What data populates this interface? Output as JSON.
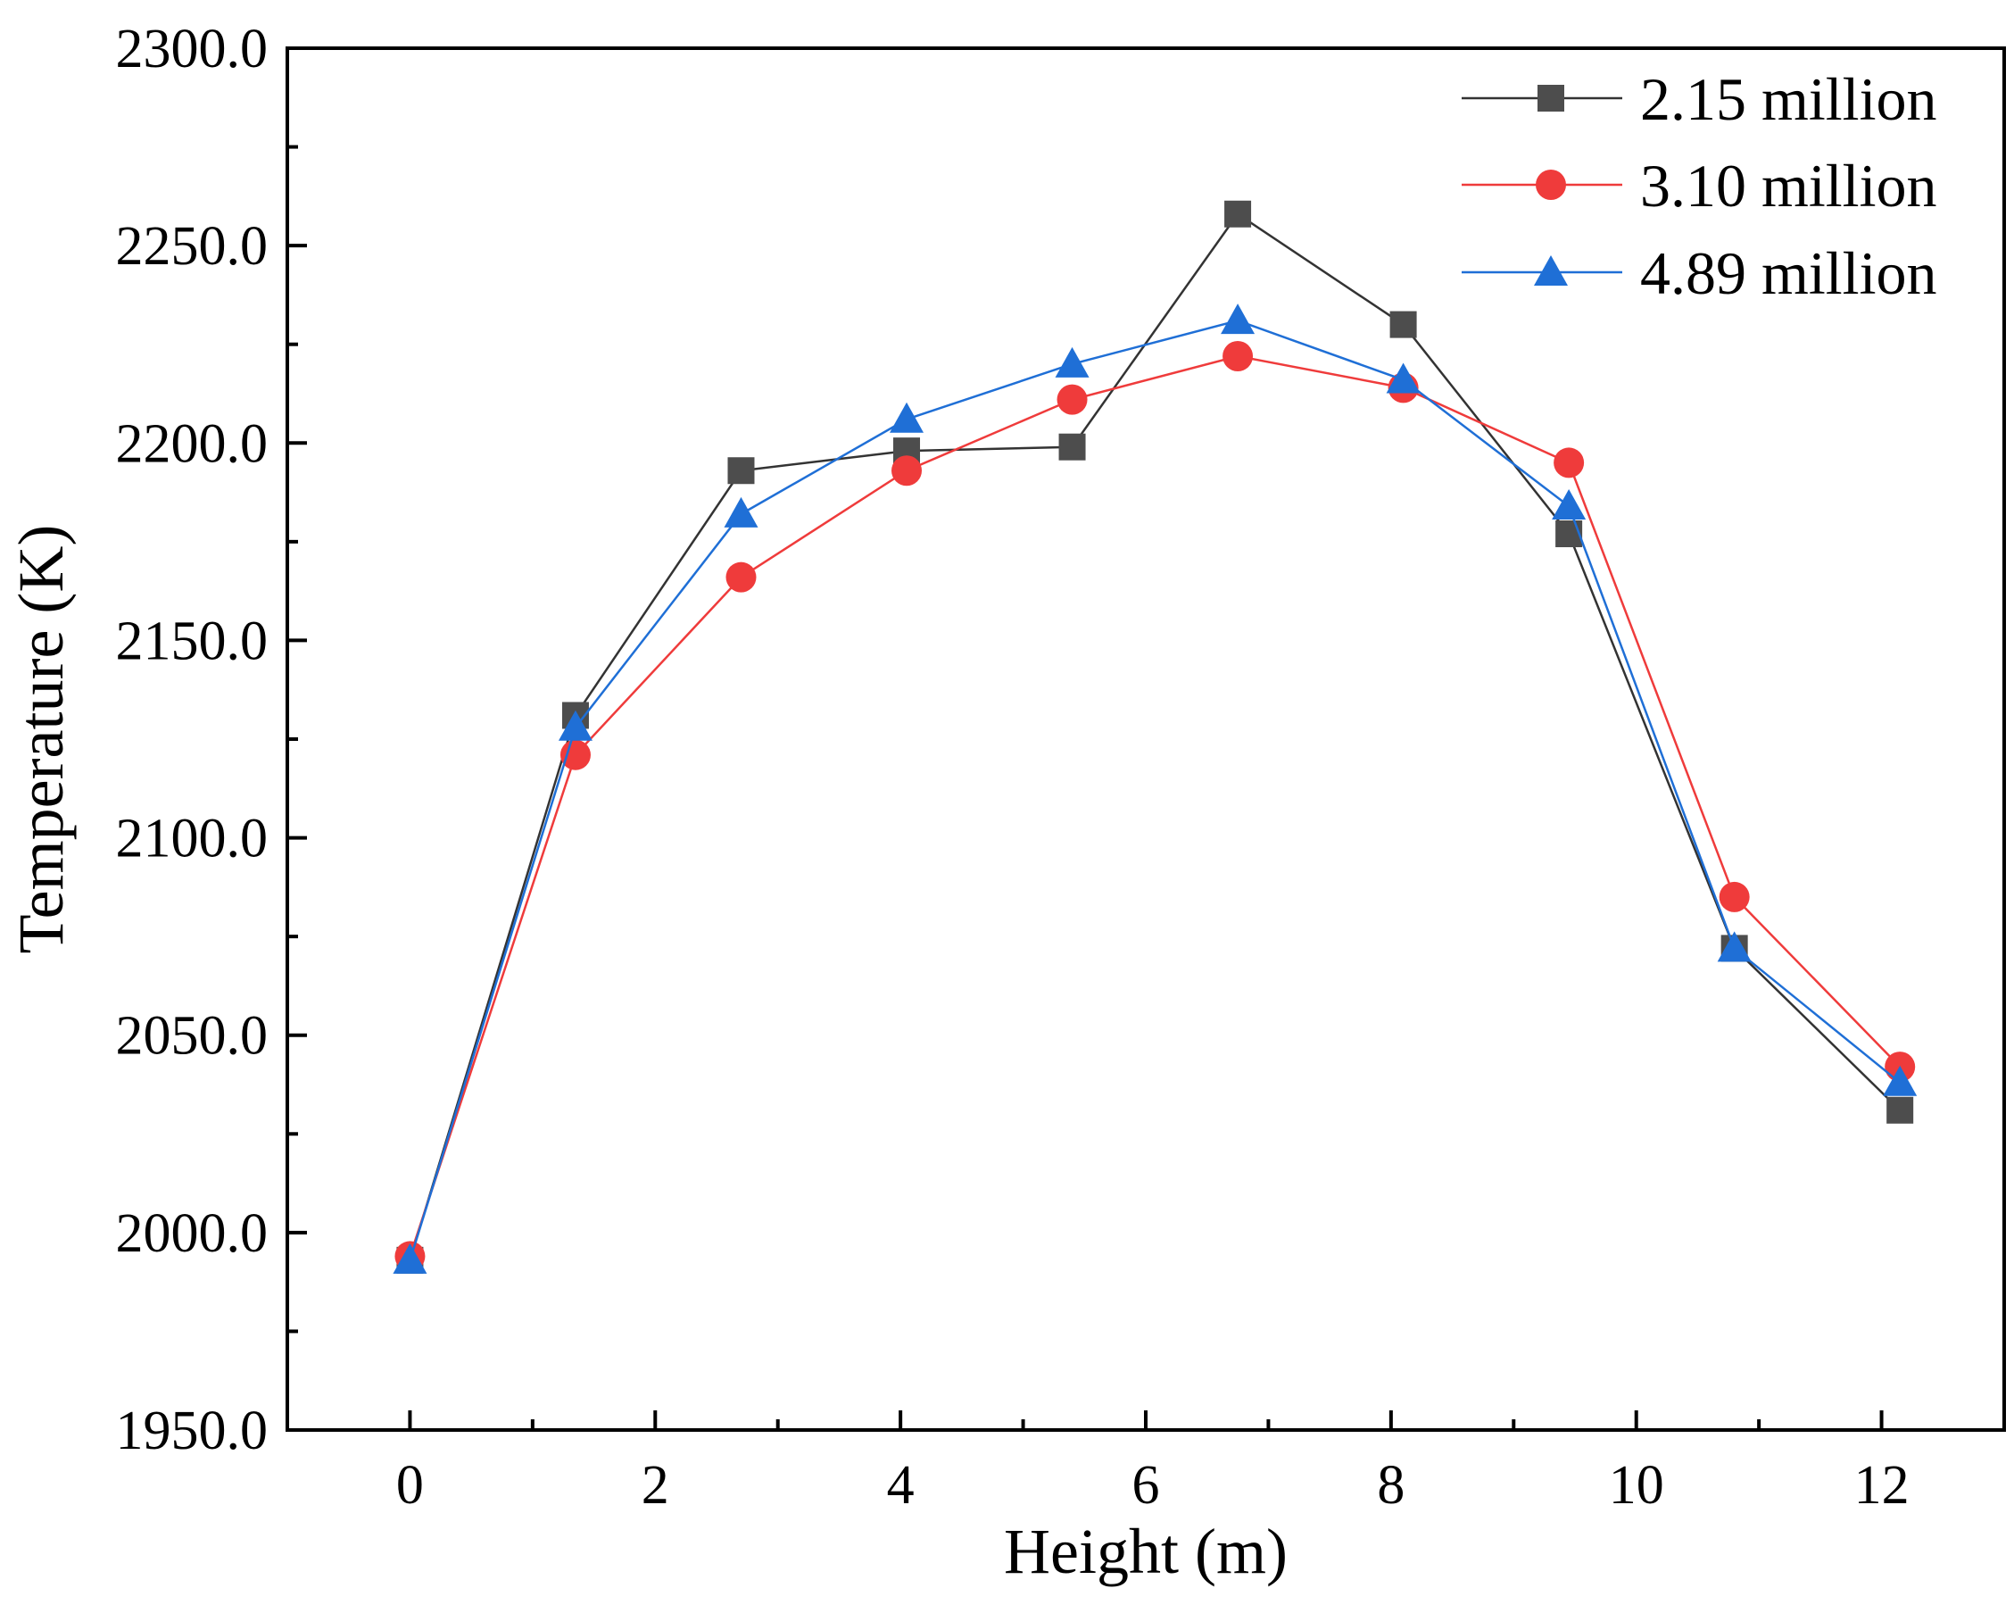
{
  "chart_data": {
    "type": "line",
    "title": "",
    "xlabel": "Height (m)",
    "ylabel": "Temperature (K)",
    "xlim": [
      -1,
      13
    ],
    "ylim": [
      1950,
      2300
    ],
    "xticks": [
      0,
      2,
      4,
      6,
      8,
      10,
      12
    ],
    "xtick_labels": [
      "0",
      "2",
      "4",
      "6",
      "8",
      "10",
      "12"
    ],
    "yticks": [
      1950,
      2000,
      2050,
      2100,
      2150,
      2200,
      2250,
      2300
    ],
    "ytick_labels": [
      "1950.0",
      "2000.0",
      "2050.0",
      "2100.0",
      "2150.0",
      "2200.0",
      "2250.0",
      "2300.0"
    ],
    "grid": false,
    "legend_position": "top-right",
    "x": [
      0,
      1.35,
      2.7,
      4.05,
      5.4,
      6.75,
      8.1,
      9.45,
      10.8,
      12.15
    ],
    "series": [
      {
        "name": "2.15 million",
        "marker": "square",
        "color": "#4d4d4d",
        "line_color": "#333333",
        "values": [
          1993,
          2131,
          2193,
          2198,
          2199,
          2258,
          2230,
          2177,
          2072,
          2031
        ]
      },
      {
        "name": "3.10 million",
        "marker": "circle",
        "color": "#ef3b3b",
        "line_color": "#ef3b3b",
        "values": [
          1994,
          2121,
          2166,
          2193,
          2211,
          2222,
          2214,
          2195,
          2085,
          2042
        ]
      },
      {
        "name": "4.89 million",
        "marker": "triangle",
        "color": "#1f6fd6",
        "line_color": "#1f6fd6",
        "values": [
          1993,
          2128,
          2182,
          2206,
          2220,
          2231,
          2216,
          2184,
          2072,
          2038
        ]
      }
    ]
  }
}
